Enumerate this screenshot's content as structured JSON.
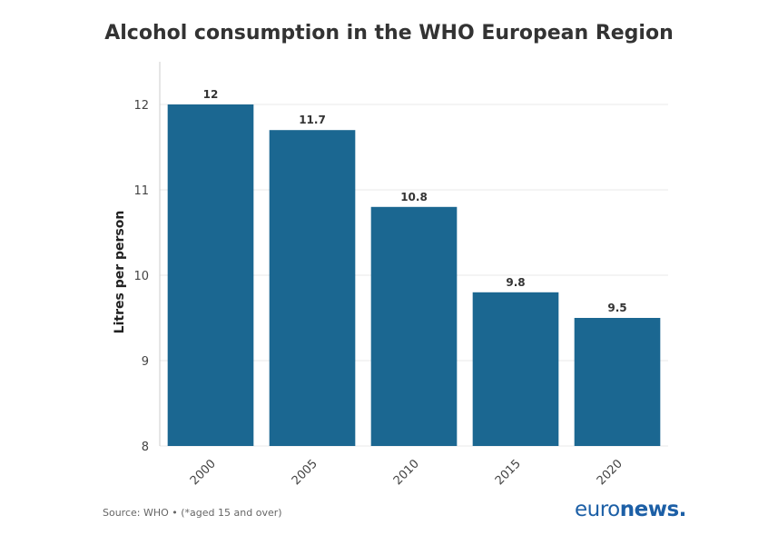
{
  "chart_data": {
    "type": "bar",
    "title": "Alcohol consumption in the WHO European Region",
    "categories": [
      "2000",
      "2005",
      "2010",
      "2015",
      "2020"
    ],
    "values": [
      12,
      11.7,
      10.8,
      9.8,
      9.5
    ],
    "value_labels": [
      "12",
      "11.7",
      "10.8",
      "9.8",
      "9.5"
    ],
    "ylabel": "Litres per person",
    "xlabel": "",
    "ylim": [
      8,
      12.5
    ],
    "yticks": [
      8,
      9,
      10,
      11,
      12
    ],
    "bar_color": "#1b6791",
    "grid": true
  },
  "footer": {
    "source": "Source: WHO • (*aged 15 and over)",
    "logo_light": "euro",
    "logo_bold": "news",
    "logo_dot": "."
  }
}
